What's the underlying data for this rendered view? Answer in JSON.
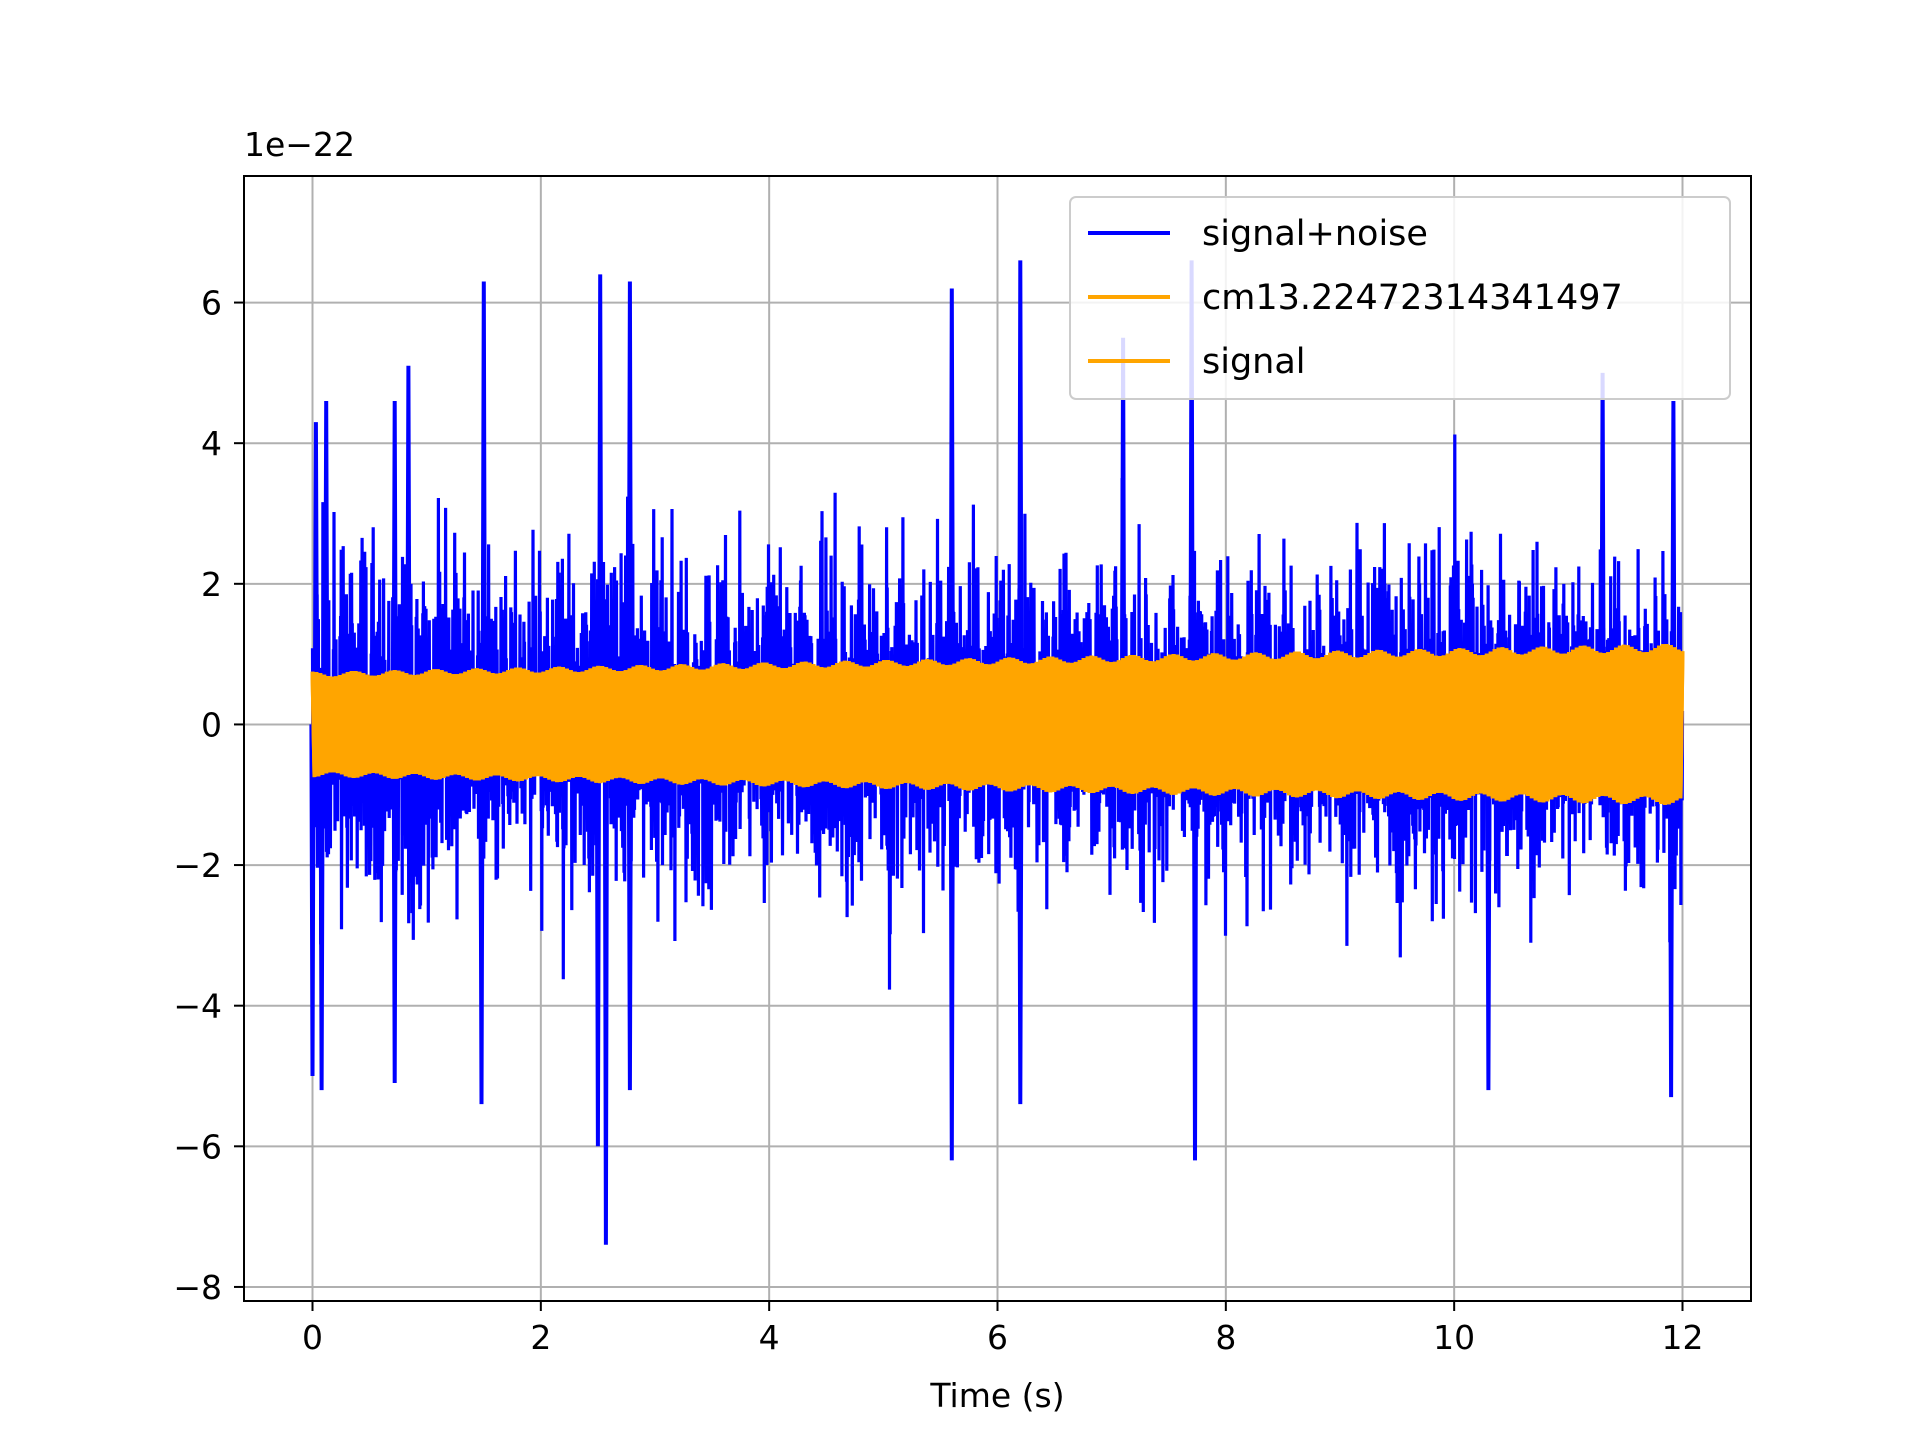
{
  "chart_data": {
    "type": "line",
    "title": "",
    "xlabel": "Time (s)",
    "ylabel": "",
    "y_offset_label": "1e−22",
    "y_scale_multiplier": 1e-22,
    "xlim": [
      -0.6,
      12.6
    ],
    "ylim": [
      -8.2,
      7.8
    ],
    "x_ticks": [
      0,
      2,
      4,
      6,
      8,
      10,
      12
    ],
    "x_tick_labels": [
      "0",
      "2",
      "4",
      "6",
      "8",
      "10",
      "12"
    ],
    "y_ticks": [
      -8,
      -6,
      -4,
      -2,
      0,
      2,
      4,
      6
    ],
    "y_tick_labels": [
      "−8",
      "−6",
      "−4",
      "−2",
      "0",
      "2",
      "4",
      "6"
    ],
    "grid": true,
    "legend_position": "top-right",
    "legend": [
      {
        "label": "signal+noise",
        "color": "#0000ff"
      },
      {
        "label": "cm13.22472314341497",
        "color": "#ffa500"
      },
      {
        "label": "signal",
        "color": "#ffa500"
      }
    ],
    "series": [
      {
        "name": "signal+noise",
        "color": "#0000ff",
        "x_range": [
          0,
          12
        ],
        "typical_band": [
          -3.0,
          3.0
        ],
        "peak_x": [
          0.03,
          0.12,
          0.72,
          0.84,
          1.5,
          2.52,
          2.78,
          5.6,
          6.2,
          7.1,
          7.7,
          11.3,
          11.92
        ],
        "peak_y": [
          4.3,
          4.6,
          4.6,
          5.1,
          6.3,
          6.4,
          6.3,
          6.2,
          6.6,
          5.5,
          6.6,
          5.0,
          4.6
        ],
        "trough_x": [
          0.0,
          0.08,
          0.72,
          1.48,
          2.5,
          2.57,
          2.78,
          5.6,
          6.2,
          7.73,
          10.3,
          11.9
        ],
        "trough_y": [
          -5.0,
          -5.2,
          -5.1,
          -5.4,
          -6.0,
          -7.4,
          -5.2,
          -6.2,
          -5.4,
          -6.2,
          -5.2,
          -5.3
        ]
      },
      {
        "name": "cm13.22472314341497",
        "color": "#ffa500",
        "x_range": [
          0,
          12
        ],
        "amplitude_start": 0.75,
        "amplitude_end": 1.15
      },
      {
        "name": "signal",
        "color": "#ffa500",
        "x_range": [
          0,
          12
        ],
        "amplitude_start": 0.75,
        "amplitude_end": 1.15
      }
    ]
  }
}
